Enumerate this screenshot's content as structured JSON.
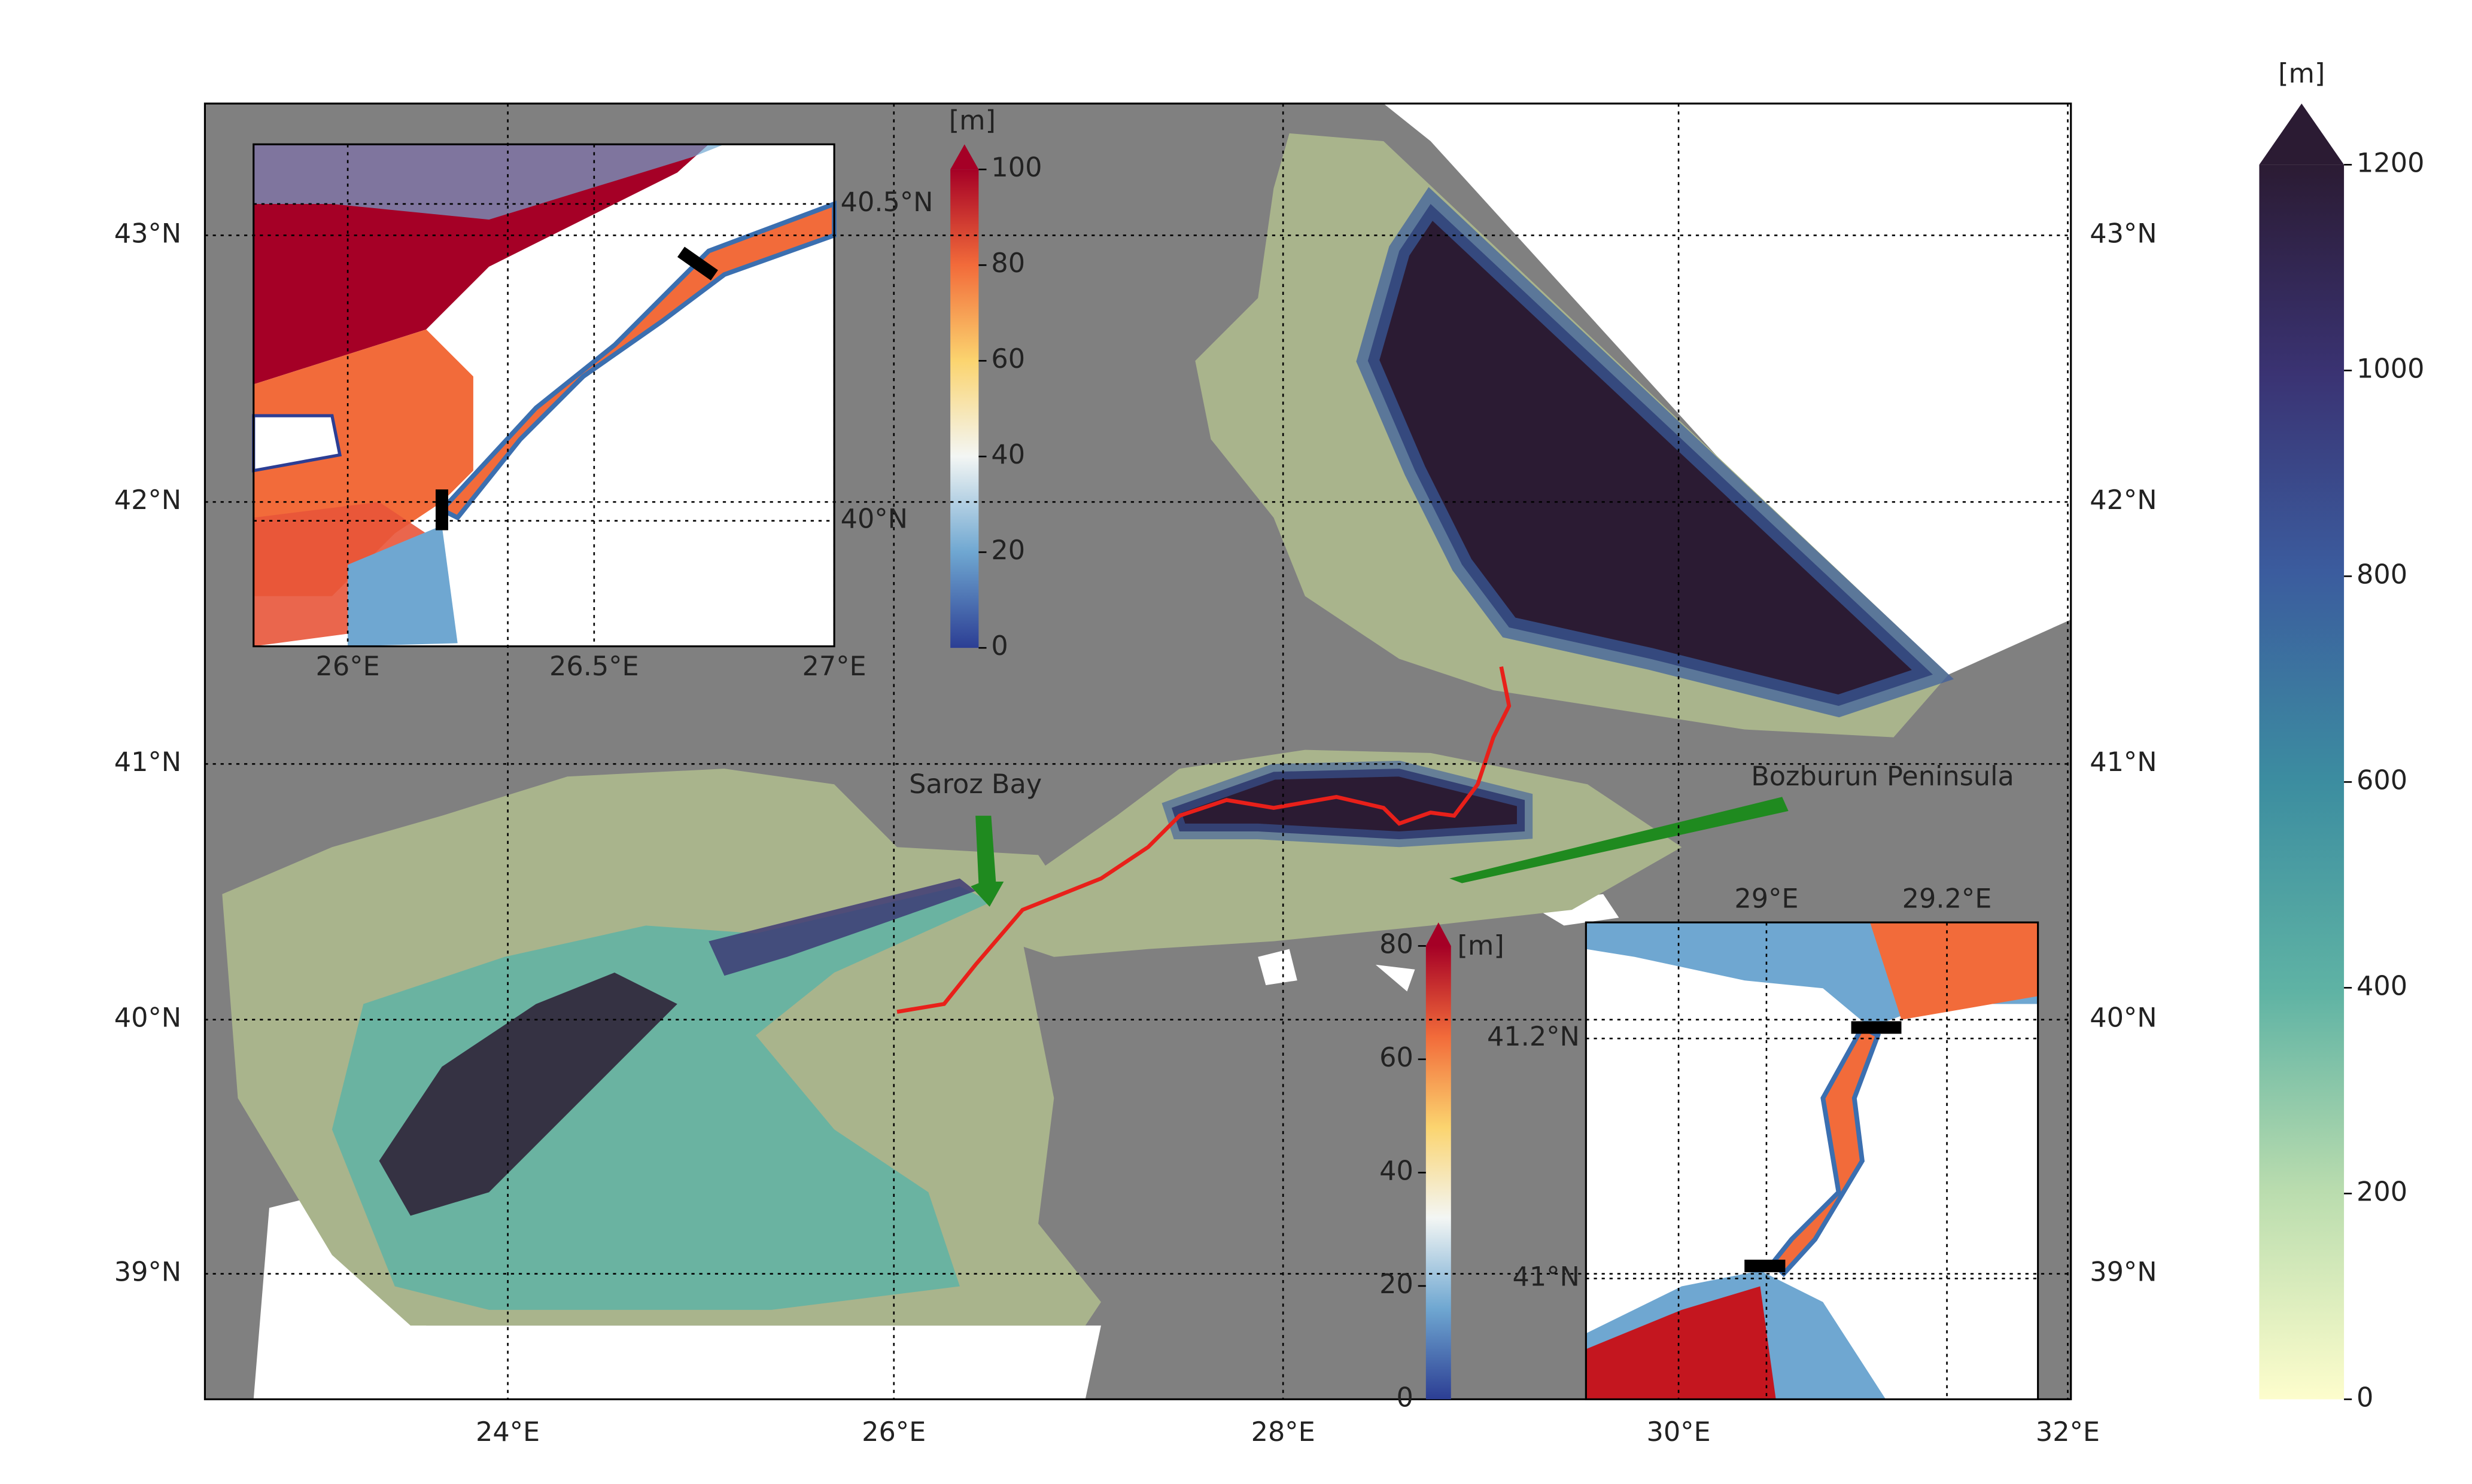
{
  "main_map": {
    "x_ticks": [
      "24°E",
      "26°E",
      "28°E",
      "30°E",
      "32°E"
    ],
    "y_ticks": [
      "39°N",
      "40°N",
      "41°N",
      "42°N",
      "43°N"
    ],
    "annotations": [
      "Saroz Bay",
      "Bozburun Peninsula"
    ]
  },
  "colorbar": {
    "unit": "[m]",
    "lim": [
      0,
      1200
    ],
    "ticks": [
      0,
      200,
      400,
      600,
      800,
      1000,
      1200
    ]
  },
  "inset_dardanelles": {
    "x_ticks": [
      "26°E",
      "26.5°E",
      "27°E"
    ],
    "y_ticks": [
      "40°N",
      "40.5°N"
    ],
    "colorbar": {
      "unit": "[m]",
      "lim": [
        0,
        100
      ],
      "ticks": [
        0,
        20,
        40,
        60,
        80,
        100
      ]
    }
  },
  "inset_bosphorus": {
    "x_ticks": [
      "29°E",
      "29.2°E"
    ],
    "y_ticks": [
      "41°N",
      "41.2°N"
    ],
    "colorbar": {
      "unit": "[m]",
      "lim": [
        0,
        80
      ],
      "ticks": [
        0,
        20,
        40,
        60,
        80
      ]
    }
  }
}
